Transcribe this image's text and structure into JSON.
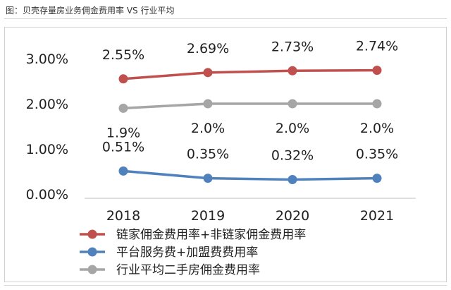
{
  "figure_title": "图：贝壳存量房业务佣金费用率 VS 行业平均",
  "chart_data": {
    "type": "line",
    "categories": [
      "2018",
      "2019",
      "2020",
      "2021"
    ],
    "ylim": [
      0,
      3
    ],
    "yticks": [
      "0.00%",
      "1.00%",
      "2.00%",
      "3.00%"
    ],
    "ytick_values": [
      0,
      1,
      2,
      3
    ],
    "grid": false,
    "legend_position": "bottom",
    "series": [
      {
        "name": "链家佣金费用率+非链家佣金费用率",
        "color": "#c0504d",
        "values": [
          2.55,
          2.69,
          2.73,
          2.74
        ],
        "labels": [
          "2.55%",
          "2.69%",
          "2.73%",
          "2.74%"
        ],
        "label_pos": "above"
      },
      {
        "name": "平台服务费+加盟费费用率",
        "color": "#4f81bd",
        "values": [
          0.51,
          0.35,
          0.32,
          0.35
        ],
        "labels": [
          "0.51%",
          "0.35%",
          "0.32%",
          "0.35%"
        ],
        "label_pos": "above"
      },
      {
        "name": "行业平均二手房佣金费用率",
        "color": "#a6a6a6",
        "values": [
          1.9,
          2.0,
          2.0,
          2.0
        ],
        "labels": [
          "1.9%",
          "2.0%",
          "2.0%",
          "2.0%"
        ],
        "label_pos": "below"
      }
    ]
  }
}
